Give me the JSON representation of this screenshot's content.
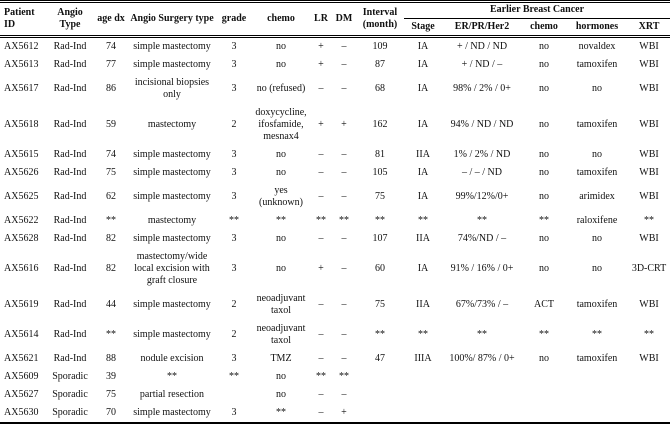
{
  "table": {
    "group_header": "Earlier Breast Cancer",
    "main_headers": [
      "Patient ID",
      "Angio Type",
      "age dx",
      "Angio Surgery type",
      "grade",
      "chemo",
      "LR",
      "DM",
      "Interval (month)"
    ],
    "sub_headers": [
      "Stage",
      "ER/PR/Her2",
      "chemo",
      "hormones",
      "XRT"
    ],
    "col_keys": [
      "patient-id",
      "angio-type",
      "age-dx",
      "angio-surgery-type",
      "grade",
      "chemo",
      "lr",
      "dm",
      "interval-month",
      "stage",
      "er-pr-her2",
      "ebc-chemo",
      "ebc-hormones",
      "xrt"
    ],
    "rows": [
      [
        "AX5612",
        "Rad-Ind",
        "74",
        "simple mastectomy",
        "3",
        "no",
        "+",
        "–",
        "109",
        "IA",
        "+ / ND / ND",
        "no",
        "novaldex",
        "WBI"
      ],
      [
        "AX5613",
        "Rad-Ind",
        "77",
        "simple mastectomy",
        "3",
        "no",
        "+",
        "–",
        "87",
        "IA",
        "+ / ND / –",
        "no",
        "tamoxifen",
        "WBI"
      ],
      [
        "AX5617",
        "Rad-Ind",
        "86",
        "incisional biopsies only",
        "3",
        "no (refused)",
        "–",
        "–",
        "68",
        "IA",
        "98% / 2% / 0+",
        "no",
        "no",
        "WBI"
      ],
      [
        "AX5618",
        "Rad-Ind",
        "59",
        "mastectomy",
        "2",
        "doxycycline, ifosfamide, mesnax4",
        "+",
        "+",
        "162",
        "IA",
        "94% / ND / ND",
        "no",
        "tamoxifen",
        "WBI"
      ],
      [
        "AX5615",
        "Rad-Ind",
        "74",
        "simple mastectomy",
        "3",
        "no",
        "–",
        "–",
        "81",
        "IIA",
        "1% / 2% / ND",
        "no",
        "no",
        "WBI"
      ],
      [
        "AX5626",
        "Rad-Ind",
        "75",
        "simple mastectomy",
        "3",
        "no",
        "–",
        "–",
        "105",
        "IA",
        "– / – / ND",
        "no",
        "tamoxifen",
        "WBI"
      ],
      [
        "AX5625",
        "Rad-Ind",
        "62",
        "simple mastectomy",
        "3",
        "yes (unknown)",
        "–",
        "–",
        "75",
        "IA",
        "99%/12%/0+",
        "no",
        "arimidex",
        "WBI"
      ],
      [
        "AX5622",
        "Rad-Ind",
        "**",
        "mastectomy",
        "**",
        "**",
        "**",
        "**",
        "**",
        "**",
        "**",
        "**",
        "raloxifene",
        "**"
      ],
      [
        "AX5628",
        "Rad-Ind",
        "82",
        "simple mastectomy",
        "3",
        "no",
        "–",
        "–",
        "107",
        "IIA",
        "74%/ND / –",
        "no",
        "no",
        "WBI"
      ],
      [
        "AX5616",
        "Rad-Ind",
        "82",
        "mastectomy/wide local excision with graft closure",
        "3",
        "no",
        "+",
        "–",
        "60",
        "IA",
        "91% / 16% / 0+",
        "no",
        "no",
        "3D-CRT"
      ],
      [
        "AX5619",
        "Rad-Ind",
        "44",
        "simple mastectomy",
        "2",
        "neoadjuvant taxol",
        "–",
        "–",
        "75",
        "IIA",
        "67%/73% / –",
        "ACT",
        "tamoxifen",
        "WBI"
      ],
      [
        "AX5614",
        "Rad-Ind",
        "**",
        "simple mastectomy",
        "2",
        "neoadjuvant taxol",
        "–",
        "–",
        "**",
        "**",
        "**",
        "**",
        "**",
        "**"
      ],
      [
        "AX5621",
        "Rad-Ind",
        "88",
        "nodule excision",
        "3",
        "TMZ",
        "–",
        "–",
        "47",
        "IIIA",
        "100%/ 87% / 0+",
        "no",
        "tamoxifen",
        "WBI"
      ],
      [
        "AX5609",
        "Sporadic",
        "39",
        "**",
        "**",
        "no",
        "**",
        "**",
        "",
        "",
        "",
        "",
        "",
        ""
      ],
      [
        "AX5627",
        "Sporadic",
        "75",
        "partial resection",
        "",
        "no",
        "–",
        "–",
        "",
        "",
        "",
        "",
        "",
        ""
      ],
      [
        "AX5630",
        "Sporadic",
        "70",
        "simple mastectomy",
        "3",
        "**",
        "–",
        "+",
        "",
        "",
        "",
        "",
        "",
        ""
      ]
    ]
  }
}
